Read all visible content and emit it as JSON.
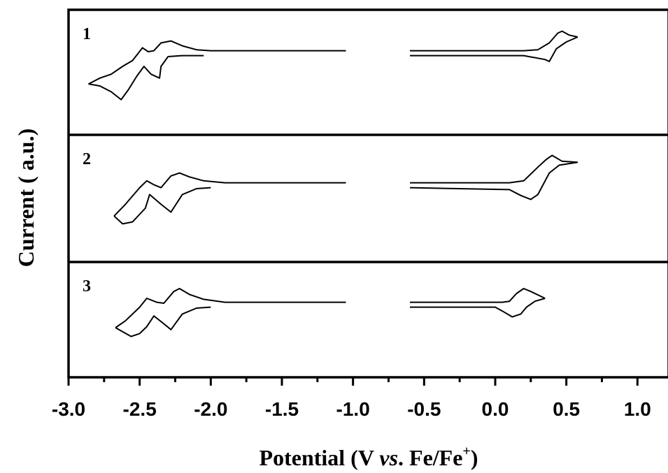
{
  "chart_data": {
    "type": "line",
    "xlabel": {
      "prefix": "Potential (V ",
      "italic": "vs",
      "middle": ". Fe/Fe",
      "superscript": "+",
      "suffix": ")"
    },
    "ylabel": "Current ( a.u.)",
    "xlim": [
      -3.0,
      1.2
    ],
    "x_ticks": [
      -3.0,
      -2.5,
      -2.0,
      -1.5,
      -1.0,
      -0.5,
      0.0,
      0.5,
      1.0
    ],
    "x_tick_labels": [
      "-3.0",
      "-2.5",
      "-2.0",
      "-1.5",
      "-1.0",
      "-0.5",
      "0.0",
      "0.5",
      "1.0"
    ],
    "grid": false,
    "panels": [
      {
        "label": "1",
        "cathodic_scan": [
          [
            -2.05,
            0.55
          ],
          [
            -2.2,
            0.55
          ],
          [
            -2.3,
            0.5
          ],
          [
            -2.35,
            0.0
          ],
          [
            -2.36,
            -0.6
          ],
          [
            -2.42,
            -0.4
          ],
          [
            -2.47,
            0.0
          ],
          [
            -2.52,
            -0.5
          ],
          [
            -2.58,
            -1.2
          ],
          [
            -2.63,
            -1.7
          ],
          [
            -2.7,
            -1.3
          ],
          [
            -2.78,
            -1.0
          ],
          [
            -2.86,
            -0.9
          ]
        ],
        "anodic_scan": [
          [
            -2.86,
            -0.9
          ],
          [
            -2.78,
            -0.6
          ],
          [
            -2.7,
            -0.4
          ],
          [
            -2.62,
            0.0
          ],
          [
            -2.55,
            0.3
          ],
          [
            -2.48,
            0.95
          ],
          [
            -2.44,
            0.75
          ],
          [
            -2.4,
            0.8
          ],
          [
            -2.35,
            1.2
          ],
          [
            -2.28,
            1.3
          ],
          [
            -2.2,
            1.05
          ],
          [
            -2.1,
            0.85
          ],
          [
            -2.0,
            0.8
          ],
          [
            -1.05,
            0.8
          ]
        ],
        "oxidation_forward": [
          [
            -0.6,
            0.8
          ],
          [
            0.2,
            0.8
          ],
          [
            0.3,
            0.85
          ],
          [
            0.38,
            1.2
          ],
          [
            0.44,
            1.7
          ],
          [
            0.47,
            1.8
          ],
          [
            0.52,
            1.6
          ],
          [
            0.58,
            1.5
          ]
        ],
        "oxidation_reverse": [
          [
            0.58,
            1.5
          ],
          [
            0.5,
            1.25
          ],
          [
            0.43,
            0.9
          ],
          [
            0.38,
            0.25
          ],
          [
            0.35,
            0.35
          ],
          [
            0.2,
            0.55
          ],
          [
            -0.6,
            0.55
          ]
        ]
      },
      {
        "label": "2",
        "cathodic_scan": [
          [
            -2.0,
            0.55
          ],
          [
            -2.1,
            0.5
          ],
          [
            -2.2,
            0.2
          ],
          [
            -2.28,
            -0.7
          ],
          [
            -2.35,
            -0.3
          ],
          [
            -2.43,
            0.2
          ],
          [
            -2.46,
            -0.5
          ],
          [
            -2.55,
            -1.2
          ],
          [
            -2.62,
            -1.3
          ],
          [
            -2.68,
            -0.9
          ]
        ],
        "anodic_scan": [
          [
            -2.68,
            -0.9
          ],
          [
            -2.6,
            -0.3
          ],
          [
            -2.5,
            0.55
          ],
          [
            -2.45,
            0.9
          ],
          [
            -2.4,
            0.7
          ],
          [
            -2.35,
            0.55
          ],
          [
            -2.28,
            1.15
          ],
          [
            -2.22,
            1.3
          ],
          [
            -2.15,
            1.1
          ],
          [
            -2.05,
            0.9
          ],
          [
            -1.9,
            0.8
          ],
          [
            -1.05,
            0.8
          ]
        ],
        "oxidation_forward": [
          [
            -0.6,
            0.8
          ],
          [
            0.1,
            0.8
          ],
          [
            0.2,
            0.9
          ],
          [
            0.3,
            1.6
          ],
          [
            0.36,
            2.0
          ],
          [
            0.4,
            2.2
          ],
          [
            0.47,
            1.9
          ],
          [
            0.58,
            1.85
          ]
        ],
        "oxidation_reverse": [
          [
            0.58,
            1.85
          ],
          [
            0.45,
            1.7
          ],
          [
            0.38,
            1.3
          ],
          [
            0.3,
            0.2
          ],
          [
            0.25,
            -0.05
          ],
          [
            0.18,
            0.15
          ],
          [
            0.1,
            0.45
          ],
          [
            -0.6,
            0.55
          ]
        ]
      },
      {
        "label": "3",
        "cathodic_scan": [
          [
            -2.0,
            0.55
          ],
          [
            -2.1,
            0.5
          ],
          [
            -2.2,
            0.2
          ],
          [
            -2.28,
            -0.6
          ],
          [
            -2.33,
            -0.3
          ],
          [
            -2.4,
            0.1
          ],
          [
            -2.45,
            -0.45
          ],
          [
            -2.5,
            -0.8
          ],
          [
            -2.56,
            -0.95
          ],
          [
            -2.67,
            -0.5
          ]
        ],
        "anodic_scan": [
          [
            -2.67,
            -0.5
          ],
          [
            -2.6,
            -0.15
          ],
          [
            -2.5,
            0.55
          ],
          [
            -2.45,
            1.0
          ],
          [
            -2.38,
            0.8
          ],
          [
            -2.33,
            0.75
          ],
          [
            -2.26,
            1.35
          ],
          [
            -2.22,
            1.5
          ],
          [
            -2.15,
            1.2
          ],
          [
            -2.05,
            0.95
          ],
          [
            -1.9,
            0.8
          ],
          [
            -1.05,
            0.8
          ]
        ],
        "oxidation_forward": [
          [
            -0.6,
            0.8
          ],
          [
            0.05,
            0.8
          ],
          [
            0.1,
            0.85
          ],
          [
            0.15,
            1.25
          ],
          [
            0.2,
            1.5
          ],
          [
            0.25,
            1.35
          ],
          [
            0.35,
            1.0
          ]
        ],
        "oxidation_reverse": [
          [
            0.35,
            1.0
          ],
          [
            0.28,
            0.85
          ],
          [
            0.22,
            0.55
          ],
          [
            0.18,
            0.2
          ],
          [
            0.12,
            0.05
          ],
          [
            0.05,
            0.35
          ],
          [
            0.0,
            0.55
          ],
          [
            -0.6,
            0.55
          ]
        ]
      }
    ]
  }
}
